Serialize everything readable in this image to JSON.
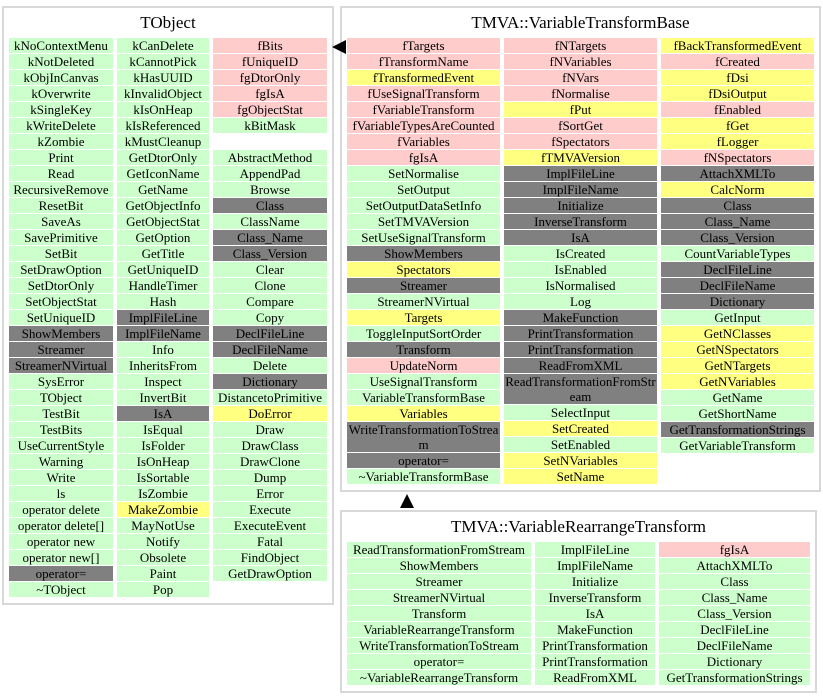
{
  "legend_colors": {
    "g": "#ccffcc",
    "p": "#ffcccc",
    "y": "#ffff80",
    "d": "#808080"
  },
  "boxes": [
    {
      "title": "TObject",
      "columns": [
        [
          [
            "kNoContextMenu",
            "g"
          ],
          [
            "kNotDeleted",
            "g"
          ],
          [
            "kObjInCanvas",
            "g"
          ],
          [
            "kOverwrite",
            "g"
          ],
          [
            "kSingleKey",
            "g"
          ],
          [
            "kWriteDelete",
            "g"
          ],
          [
            "kZombie",
            "g"
          ],
          [
            "Print",
            "g"
          ],
          [
            "Read",
            "g"
          ],
          [
            "RecursiveRemove",
            "g"
          ],
          [
            "ResetBit",
            "g"
          ],
          [
            "SaveAs",
            "g"
          ],
          [
            "SavePrimitive",
            "g"
          ],
          [
            "SetBit",
            "g"
          ],
          [
            "SetDrawOption",
            "g"
          ],
          [
            "SetDtorOnly",
            "g"
          ],
          [
            "SetObjectStat",
            "g"
          ],
          [
            "SetUniqueID",
            "g"
          ],
          [
            "ShowMembers",
            "d"
          ],
          [
            "Streamer",
            "d"
          ],
          [
            "StreamerNVirtual",
            "d"
          ],
          [
            "SysError",
            "g"
          ],
          [
            "TObject",
            "g"
          ],
          [
            "TestBit",
            "g"
          ],
          [
            "TestBits",
            "g"
          ],
          [
            "UseCurrentStyle",
            "g"
          ],
          [
            "Warning",
            "g"
          ],
          [
            "Write",
            "g"
          ],
          [
            "ls",
            "g"
          ],
          [
            "operator delete",
            "g"
          ],
          [
            "operator delete[]",
            "g"
          ],
          [
            "operator new",
            "g"
          ],
          [
            "operator new[]",
            "g"
          ],
          [
            "operator=",
            "d"
          ],
          [
            "~TObject",
            "g"
          ]
        ],
        [
          [
            "kCanDelete",
            "g"
          ],
          [
            "kCannotPick",
            "g"
          ],
          [
            "kHasUUID",
            "g"
          ],
          [
            "kInvalidObject",
            "g"
          ],
          [
            "kIsOnHeap",
            "g"
          ],
          [
            "kIsReferenced",
            "g"
          ],
          [
            "kMustCleanup",
            "g"
          ],
          [
            "GetDtorOnly",
            "g"
          ],
          [
            "GetIconName",
            "g"
          ],
          [
            "GetName",
            "g"
          ],
          [
            "GetObjectInfo",
            "g"
          ],
          [
            "GetObjectStat",
            "g"
          ],
          [
            "GetOption",
            "g"
          ],
          [
            "GetTitle",
            "g"
          ],
          [
            "GetUniqueID",
            "g"
          ],
          [
            "HandleTimer",
            "g"
          ],
          [
            "Hash",
            "g"
          ],
          [
            "ImplFileLine",
            "d"
          ],
          [
            "ImplFileName",
            "d"
          ],
          [
            "Info",
            "g"
          ],
          [
            "InheritsFrom",
            "g"
          ],
          [
            "Inspect",
            "g"
          ],
          [
            "InvertBit",
            "g"
          ],
          [
            "IsA",
            "d"
          ],
          [
            "IsEqual",
            "g"
          ],
          [
            "IsFolder",
            "g"
          ],
          [
            "IsOnHeap",
            "g"
          ],
          [
            "IsSortable",
            "g"
          ],
          [
            "IsZombie",
            "g"
          ],
          [
            "MakeZombie",
            "y"
          ],
          [
            "MayNotUse",
            "g"
          ],
          [
            "Notify",
            "g"
          ],
          [
            "Obsolete",
            "g"
          ],
          [
            "Paint",
            "g"
          ],
          [
            "Pop",
            "g"
          ]
        ],
        [
          [
            "fBits",
            "p"
          ],
          [
            "fUniqueID",
            "p"
          ],
          [
            "fgDtorOnly",
            "p"
          ],
          [
            "fgIsA",
            "p"
          ],
          [
            "fgObjectStat",
            "p"
          ],
          [
            "kBitMask",
            "g"
          ],
          [
            "",
            "e"
          ],
          [
            "AbstractMethod",
            "g"
          ],
          [
            "AppendPad",
            "g"
          ],
          [
            "Browse",
            "g"
          ],
          [
            "Class",
            "d"
          ],
          [
            "ClassName",
            "g"
          ],
          [
            "Class_Name",
            "d"
          ],
          [
            "Class_Version",
            "d"
          ],
          [
            "Clear",
            "g"
          ],
          [
            "Clone",
            "g"
          ],
          [
            "Compare",
            "g"
          ],
          [
            "Copy",
            "g"
          ],
          [
            "DeclFileLine",
            "d"
          ],
          [
            "DeclFileName",
            "d"
          ],
          [
            "Delete",
            "g"
          ],
          [
            "Dictionary",
            "d"
          ],
          [
            "DistancetoPrimitive",
            "g"
          ],
          [
            "DoError",
            "y"
          ],
          [
            "Draw",
            "g"
          ],
          [
            "DrawClass",
            "g"
          ],
          [
            "DrawClone",
            "g"
          ],
          [
            "Dump",
            "g"
          ],
          [
            "Error",
            "g"
          ],
          [
            "Execute",
            "g"
          ],
          [
            "ExecuteEvent",
            "g"
          ],
          [
            "Fatal",
            "g"
          ],
          [
            "FindObject",
            "g"
          ],
          [
            "GetDrawOption",
            "g"
          ]
        ]
      ]
    },
    {
      "title": "TMVA::VariableTransformBase",
      "columns": [
        [
          [
            "fTargets",
            "p"
          ],
          [
            "fTransformName",
            "p"
          ],
          [
            "fTransformedEvent",
            "y"
          ],
          [
            "fUseSignalTransform",
            "p"
          ],
          [
            "fVariableTransform",
            "p"
          ],
          [
            "fVariableTypesAreCounted",
            "p"
          ],
          [
            "fVariables",
            "p"
          ],
          [
            "fgIsA",
            "p"
          ],
          [
            "SetNormalise",
            "g"
          ],
          [
            "SetOutput",
            "g"
          ],
          [
            "SetOutputDataSetInfo",
            "g"
          ],
          [
            "SetTMVAVersion",
            "g"
          ],
          [
            "SetUseSignalTransform",
            "g"
          ],
          [
            "ShowMembers",
            "d"
          ],
          [
            "Spectators",
            "y"
          ],
          [
            "Streamer",
            "d"
          ],
          [
            "StreamerNVirtual",
            "g"
          ],
          [
            "Targets",
            "y"
          ],
          [
            "ToggleInputSortOrder",
            "g"
          ],
          [
            "Transform",
            "d"
          ],
          [
            "UpdateNorm",
            "p"
          ],
          [
            "UseSignalTransform",
            "g"
          ],
          [
            "VariableTransformBase",
            "g"
          ],
          [
            "Variables",
            "y"
          ],
          [
            "WriteTransformationToStream",
            "d"
          ],
          [
            "operator=",
            "d"
          ],
          [
            "~VariableTransformBase",
            "g"
          ]
        ],
        [
          [
            "fNTargets",
            "p"
          ],
          [
            "fNVariables",
            "p"
          ],
          [
            "fNVars",
            "p"
          ],
          [
            "fNormalise",
            "p"
          ],
          [
            "fPut",
            "y"
          ],
          [
            "fSortGet",
            "p"
          ],
          [
            "fSpectators",
            "p"
          ],
          [
            "fTMVAVersion",
            "y"
          ],
          [
            "ImplFileLine",
            "d"
          ],
          [
            "ImplFileName",
            "d"
          ],
          [
            "Initialize",
            "d"
          ],
          [
            "InverseTransform",
            "d"
          ],
          [
            "IsA",
            "d"
          ],
          [
            "IsCreated",
            "g"
          ],
          [
            "IsEnabled",
            "g"
          ],
          [
            "IsNormalised",
            "g"
          ],
          [
            "Log",
            "g"
          ],
          [
            "MakeFunction",
            "d"
          ],
          [
            "PrintTransformation",
            "d"
          ],
          [
            "PrintTransformation",
            "d"
          ],
          [
            "ReadFromXML",
            "d"
          ],
          [
            "ReadTransformationFromStream",
            "d"
          ],
          [
            "SelectInput",
            "g"
          ],
          [
            "SetCreated",
            "y"
          ],
          [
            "SetEnabled",
            "g"
          ],
          [
            "SetNVariables",
            "y"
          ],
          [
            "SetName",
            "y"
          ]
        ],
        [
          [
            "fBackTransformedEvent",
            "y"
          ],
          [
            "fCreated",
            "p"
          ],
          [
            "fDsi",
            "y"
          ],
          [
            "fDsiOutput",
            "y"
          ],
          [
            "fEnabled",
            "p"
          ],
          [
            "fGet",
            "y"
          ],
          [
            "fLogger",
            "y"
          ],
          [
            "fNSpectators",
            "p"
          ],
          [
            "AttachXMLTo",
            "d"
          ],
          [
            "CalcNorm",
            "y"
          ],
          [
            "Class",
            "d"
          ],
          [
            "Class_Name",
            "d"
          ],
          [
            "Class_Version",
            "d"
          ],
          [
            "CountVariableTypes",
            "g"
          ],
          [
            "DeclFileLine",
            "d"
          ],
          [
            "DeclFileName",
            "d"
          ],
          [
            "Dictionary",
            "d"
          ],
          [
            "GetInput",
            "g"
          ],
          [
            "GetNClasses",
            "y"
          ],
          [
            "GetNSpectators",
            "y"
          ],
          [
            "GetNTargets",
            "y"
          ],
          [
            "GetNVariables",
            "y"
          ],
          [
            "GetName",
            "g"
          ],
          [
            "GetShortName",
            "g"
          ],
          [
            "GetTransformationStrings",
            "d"
          ],
          [
            "GetVariableTransform",
            "g"
          ]
        ]
      ]
    },
    {
      "title": "TMVA::VariableRearrangeTransform",
      "columns": [
        [
          [
            "ReadTransformationFromStream",
            "g"
          ],
          [
            "ShowMembers",
            "g"
          ],
          [
            "Streamer",
            "g"
          ],
          [
            "StreamerNVirtual",
            "g"
          ],
          [
            "Transform",
            "g"
          ],
          [
            "VariableRearrangeTransform",
            "g"
          ],
          [
            "WriteTransformationToStream",
            "g"
          ],
          [
            "operator=",
            "g"
          ],
          [
            "~VariableRearrangeTransform",
            "g"
          ]
        ],
        [
          [
            "ImplFileLine",
            "g"
          ],
          [
            "ImplFileName",
            "g"
          ],
          [
            "Initialize",
            "g"
          ],
          [
            "InverseTransform",
            "g"
          ],
          [
            "IsA",
            "g"
          ],
          [
            "MakeFunction",
            "g"
          ],
          [
            "PrintTransformation",
            "g"
          ],
          [
            "PrintTransformation",
            "g"
          ],
          [
            "ReadFromXML",
            "g"
          ]
        ],
        [
          [
            "fgIsA",
            "p"
          ],
          [
            "AttachXMLTo",
            "g"
          ],
          [
            "Class",
            "g"
          ],
          [
            "Class_Name",
            "g"
          ],
          [
            "Class_Version",
            "g"
          ],
          [
            "DeclFileLine",
            "g"
          ],
          [
            "DeclFileName",
            "g"
          ],
          [
            "Dictionary",
            "g"
          ],
          [
            "GetTransformationStrings",
            "g"
          ]
        ]
      ]
    }
  ]
}
